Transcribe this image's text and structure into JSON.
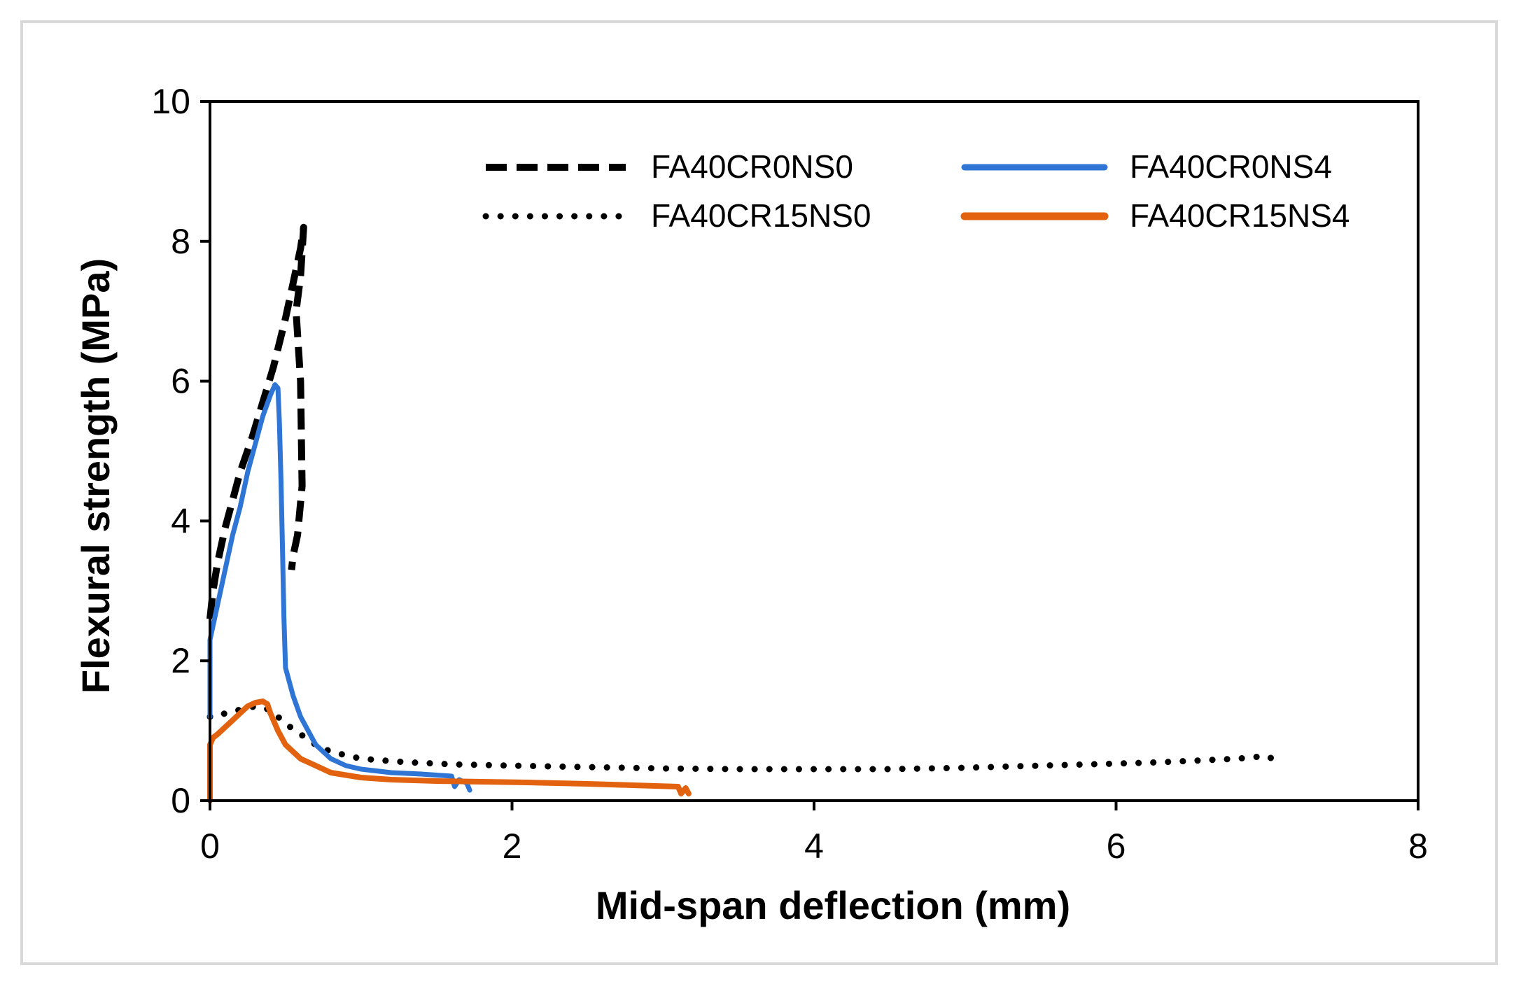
{
  "chart_data": {
    "type": "line",
    "title": "",
    "xlabel": "Mid-span deflection (mm)",
    "ylabel": "Flexural strength (MPa)",
    "xlim": [
      0,
      8
    ],
    "ylim": [
      0,
      10
    ],
    "xticks": [
      0,
      2,
      4,
      6,
      8
    ],
    "yticks": [
      0,
      2,
      4,
      6,
      8,
      10
    ],
    "xtick_labels": [
      "0",
      "2",
      "4",
      "6",
      "8"
    ],
    "ytick_labels": [
      "0",
      "2",
      "4",
      "6",
      "8",
      "10"
    ],
    "grid": false,
    "legend_position": "top-right",
    "series": [
      {
        "name": "FA40CR0NS0",
        "color": "#000000",
        "style": "dashed",
        "x": [
          0,
          0.02,
          0.05,
          0.1,
          0.15,
          0.2,
          0.28,
          0.35,
          0.42,
          0.5,
          0.55,
          0.6,
          0.62,
          0.6,
          0.57,
          0.6,
          0.61,
          0.58,
          0.55,
          0.54
        ],
        "y": [
          2.6,
          3.0,
          3.4,
          3.9,
          4.3,
          4.7,
          5.2,
          5.7,
          6.2,
          6.9,
          7.4,
          7.9,
          8.2,
          7.5,
          7.0,
          6.0,
          4.5,
          3.8,
          3.5,
          3.3
        ]
      },
      {
        "name": "FA40CR0NS4",
        "color": "#2e75d6",
        "style": "solid",
        "x": [
          0,
          0,
          0.02,
          0.05,
          0.1,
          0.15,
          0.2,
          0.25,
          0.3,
          0.35,
          0.4,
          0.43,
          0.45,
          0.46,
          0.47,
          0.48,
          0.49,
          0.5,
          0.55,
          0.6,
          0.65,
          0.7,
          0.8,
          0.9,
          1.0,
          1.2,
          1.4,
          1.6,
          1.62,
          1.65,
          1.7,
          1.72
        ],
        "y": [
          1.2,
          2.3,
          2.5,
          2.8,
          3.3,
          3.8,
          4.2,
          4.7,
          5.1,
          5.5,
          5.8,
          5.95,
          5.9,
          5.4,
          4.6,
          3.6,
          2.6,
          1.9,
          1.5,
          1.2,
          1.0,
          0.8,
          0.6,
          0.5,
          0.45,
          0.4,
          0.38,
          0.35,
          0.2,
          0.3,
          0.25,
          0.15
        ]
      },
      {
        "name": "FA40CR15NS0",
        "color": "#000000",
        "style": "dotted",
        "x": [
          0,
          0.05,
          0.1,
          0.2,
          0.3,
          0.4,
          0.5,
          0.6,
          0.7,
          0.8,
          1.0,
          1.3,
          1.6,
          2.0,
          2.5,
          3.0,
          3.5,
          4.0,
          4.5,
          5.0,
          5.5,
          6.0,
          6.3,
          6.6,
          6.8,
          6.9,
          7.0,
          7.05,
          7.1
        ],
        "y": [
          1.2,
          1.2,
          1.25,
          1.3,
          1.35,
          1.3,
          1.1,
          0.95,
          0.8,
          0.7,
          0.6,
          0.55,
          0.52,
          0.5,
          0.48,
          0.46,
          0.45,
          0.45,
          0.45,
          0.47,
          0.5,
          0.53,
          0.55,
          0.58,
          0.6,
          0.62,
          0.64,
          0.58,
          0.5
        ]
      },
      {
        "name": "FA40CR15NS4",
        "color": "#e2620f",
        "style": "solid",
        "x": [
          0,
          0,
          0.02,
          0.05,
          0.1,
          0.15,
          0.2,
          0.25,
          0.3,
          0.35,
          0.38,
          0.4,
          0.45,
          0.5,
          0.6,
          0.7,
          0.8,
          1.0,
          1.2,
          1.5,
          1.8,
          2.1,
          2.5,
          2.8,
          3.1,
          3.12,
          3.15,
          3.17
        ],
        "y": [
          0,
          0.8,
          0.9,
          0.95,
          1.05,
          1.15,
          1.25,
          1.35,
          1.4,
          1.42,
          1.38,
          1.25,
          1.0,
          0.8,
          0.6,
          0.5,
          0.4,
          0.33,
          0.3,
          0.28,
          0.27,
          0.26,
          0.24,
          0.22,
          0.2,
          0.1,
          0.18,
          0.1
        ]
      }
    ]
  }
}
